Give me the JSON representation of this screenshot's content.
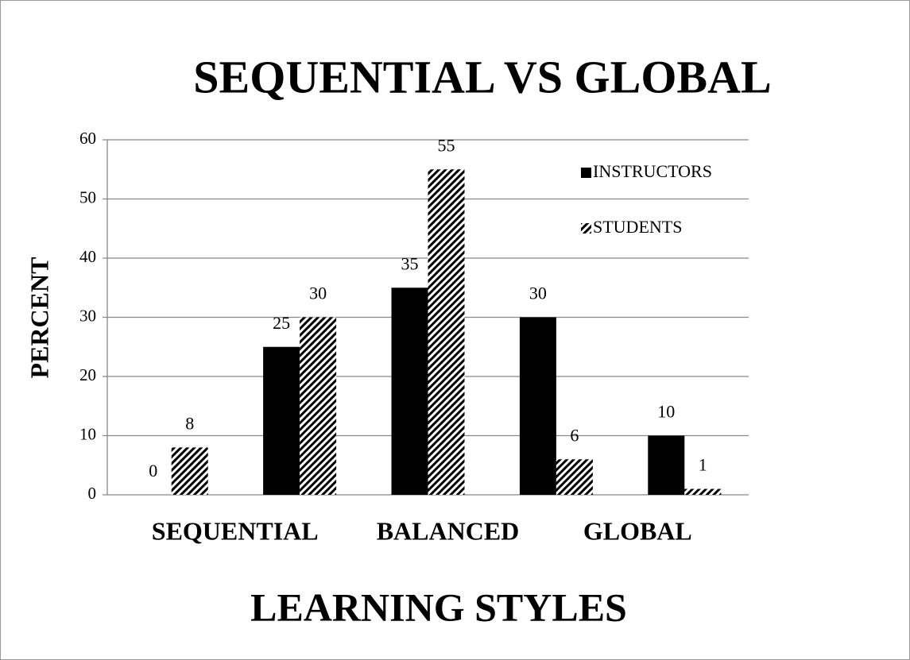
{
  "chart_data": {
    "type": "bar",
    "title": "SEQUENTIAL VS GLOBAL",
    "x_label": "LEARNING STYLES",
    "y_label": "PERCENT",
    "categories": [
      "SEQUENTIAL",
      null,
      "BALANCED",
      null,
      "GLOBAL"
    ],
    "series": [
      {
        "name": "INSTRUCTORS",
        "color": "#000000",
        "pattern": "solid",
        "values": [
          0,
          25,
          35,
          30,
          10
        ]
      },
      {
        "name": "STUDENTS",
        "color": "#000000",
        "pattern": "hatch",
        "values": [
          8,
          30,
          55,
          6,
          1
        ]
      }
    ],
    "ylim": [
      0,
      60
    ],
    "yticks": [
      0,
      10,
      20,
      30,
      40,
      50,
      60
    ],
    "grid": true,
    "legend": "top-right"
  }
}
